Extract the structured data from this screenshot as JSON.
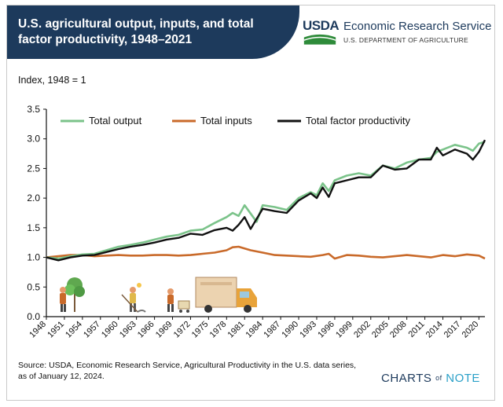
{
  "header": {
    "title": "U.S. agricultural output, inputs, and total factor productivity, 1948–2021",
    "agency_mark": "USDA",
    "agency_name": "Economic Research Service",
    "agency_department": "U.S. DEPARTMENT OF AGRICULTURE"
  },
  "y_unit_label": "Index, 1948 = 1",
  "footer": {
    "source": "Source: USDA, Economic Research Service, Agricultural Productivity in the U.S. data series, as of January 12, 2024.",
    "brand_left": "CHARTS",
    "brand_of": "of",
    "brand_right": "NOTE"
  },
  "colors": {
    "header_bg": "#1d3a5c",
    "output": "#7bc38a",
    "inputs": "#c96a2a",
    "tfp": "#111111"
  },
  "icons": [
    "farmer-with-tree-icon",
    "farmer-with-scythe-icon",
    "worker-with-cart-icon",
    "delivery-truck-icon"
  ],
  "chart_data": {
    "type": "line",
    "xlabel": "",
    "ylabel": "Index, 1948 = 1",
    "xlim": [
      1948,
      2021
    ],
    "ylim": [
      0,
      3.5
    ],
    "yticks": [
      0.0,
      0.5,
      1.0,
      1.5,
      2.0,
      2.5,
      3.0,
      3.5
    ],
    "ytick_labels": [
      "0.0",
      "0.5",
      "1.0",
      "1.5",
      "2.0",
      "2.5",
      "3.0",
      "3.5"
    ],
    "xticks": [
      1948,
      1951,
      1954,
      1957,
      1960,
      1963,
      1966,
      1969,
      1972,
      1975,
      1978,
      1981,
      1984,
      1987,
      1990,
      1993,
      1996,
      1999,
      2002,
      2005,
      2008,
      2011,
      2014,
      2017,
      2020
    ],
    "legend_position": "top",
    "grid": false,
    "series": [
      {
        "name": "Total output",
        "color": "#7bc38a",
        "points": [
          [
            1948,
            1.0
          ],
          [
            1950,
            0.98
          ],
          [
            1952,
            1.02
          ],
          [
            1954,
            1.05
          ],
          [
            1956,
            1.06
          ],
          [
            1958,
            1.12
          ],
          [
            1960,
            1.18
          ],
          [
            1962,
            1.21
          ],
          [
            1964,
            1.25
          ],
          [
            1966,
            1.3
          ],
          [
            1968,
            1.35
          ],
          [
            1970,
            1.38
          ],
          [
            1972,
            1.45
          ],
          [
            1974,
            1.47
          ],
          [
            1976,
            1.58
          ],
          [
            1978,
            1.68
          ],
          [
            1979,
            1.75
          ],
          [
            1980,
            1.7
          ],
          [
            1981,
            1.88
          ],
          [
            1983,
            1.6
          ],
          [
            1984,
            1.88
          ],
          [
            1986,
            1.85
          ],
          [
            1988,
            1.8
          ],
          [
            1990,
            2.0
          ],
          [
            1992,
            2.1
          ],
          [
            1993,
            2.05
          ],
          [
            1994,
            2.25
          ],
          [
            1995,
            2.12
          ],
          [
            1996,
            2.3
          ],
          [
            1998,
            2.38
          ],
          [
            2000,
            2.42
          ],
          [
            2002,
            2.38
          ],
          [
            2004,
            2.55
          ],
          [
            2006,
            2.5
          ],
          [
            2008,
            2.6
          ],
          [
            2010,
            2.65
          ],
          [
            2012,
            2.68
          ],
          [
            2013,
            2.78
          ],
          [
            2014,
            2.82
          ],
          [
            2016,
            2.9
          ],
          [
            2018,
            2.85
          ],
          [
            2019,
            2.8
          ],
          [
            2020,
            2.92
          ],
          [
            2021,
            2.95
          ]
        ]
      },
      {
        "name": "Total inputs",
        "color": "#c96a2a",
        "points": [
          [
            1948,
            1.0
          ],
          [
            1950,
            1.02
          ],
          [
            1952,
            1.04
          ],
          [
            1954,
            1.04
          ],
          [
            1956,
            1.02
          ],
          [
            1958,
            1.03
          ],
          [
            1960,
            1.04
          ],
          [
            1962,
            1.03
          ],
          [
            1964,
            1.03
          ],
          [
            1966,
            1.04
          ],
          [
            1968,
            1.04
          ],
          [
            1970,
            1.03
          ],
          [
            1972,
            1.04
          ],
          [
            1974,
            1.06
          ],
          [
            1976,
            1.08
          ],
          [
            1978,
            1.12
          ],
          [
            1979,
            1.17
          ],
          [
            1980,
            1.18
          ],
          [
            1982,
            1.12
          ],
          [
            1984,
            1.08
          ],
          [
            1986,
            1.04
          ],
          [
            1988,
            1.03
          ],
          [
            1990,
            1.02
          ],
          [
            1992,
            1.01
          ],
          [
            1994,
            1.04
          ],
          [
            1995,
            1.06
          ],
          [
            1996,
            0.98
          ],
          [
            1998,
            1.04
          ],
          [
            2000,
            1.03
          ],
          [
            2002,
            1.01
          ],
          [
            2004,
            1.0
          ],
          [
            2006,
            1.02
          ],
          [
            2008,
            1.04
          ],
          [
            2010,
            1.02
          ],
          [
            2012,
            1.0
          ],
          [
            2014,
            1.04
          ],
          [
            2016,
            1.02
          ],
          [
            2018,
            1.05
          ],
          [
            2019,
            1.04
          ],
          [
            2020,
            1.03
          ],
          [
            2021,
            0.98
          ]
        ]
      },
      {
        "name": "Total factor productivity",
        "color": "#111111",
        "points": [
          [
            1948,
            1.0
          ],
          [
            1950,
            0.95
          ],
          [
            1952,
            1.0
          ],
          [
            1954,
            1.03
          ],
          [
            1956,
            1.04
          ],
          [
            1958,
            1.09
          ],
          [
            1960,
            1.14
          ],
          [
            1962,
            1.18
          ],
          [
            1964,
            1.21
          ],
          [
            1966,
            1.25
          ],
          [
            1968,
            1.3
          ],
          [
            1970,
            1.33
          ],
          [
            1972,
            1.4
          ],
          [
            1974,
            1.38
          ],
          [
            1976,
            1.46
          ],
          [
            1978,
            1.5
          ],
          [
            1979,
            1.45
          ],
          [
            1980,
            1.55
          ],
          [
            1981,
            1.68
          ],
          [
            1982,
            1.48
          ],
          [
            1984,
            1.82
          ],
          [
            1986,
            1.78
          ],
          [
            1988,
            1.75
          ],
          [
            1990,
            1.96
          ],
          [
            1992,
            2.08
          ],
          [
            1993,
            2.0
          ],
          [
            1994,
            2.18
          ],
          [
            1995,
            2.02
          ],
          [
            1996,
            2.25
          ],
          [
            1998,
            2.3
          ],
          [
            2000,
            2.35
          ],
          [
            2002,
            2.35
          ],
          [
            2004,
            2.55
          ],
          [
            2006,
            2.48
          ],
          [
            2008,
            2.5
          ],
          [
            2010,
            2.65
          ],
          [
            2012,
            2.65
          ],
          [
            2013,
            2.85
          ],
          [
            2014,
            2.72
          ],
          [
            2016,
            2.82
          ],
          [
            2018,
            2.75
          ],
          [
            2019,
            2.65
          ],
          [
            2020,
            2.78
          ],
          [
            2021,
            2.98
          ]
        ]
      }
    ]
  }
}
